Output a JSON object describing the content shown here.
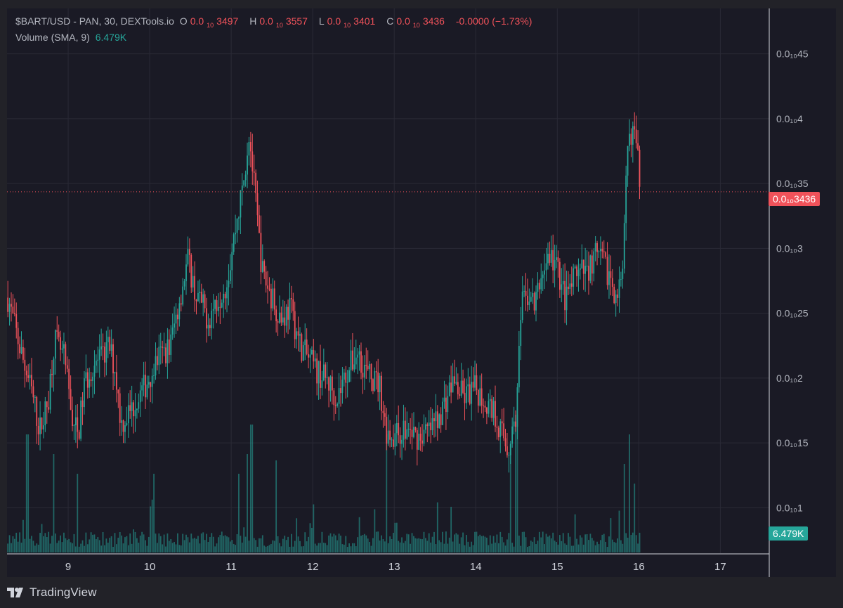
{
  "header": {
    "symbol": "$BART/USD - PAN, 30, DEXTools.io",
    "open_prefix": "O",
    "open_value": "0.0",
    "high_prefix": "H",
    "high_value": "0.0",
    "low_prefix": "L",
    "low_value": "0.0",
    "close_prefix": "C",
    "close_value": "0.0",
    "sub": "10",
    "open_digits": "3497",
    "high_digits": "3557",
    "low_digits": "3401",
    "close_digits": "3436",
    "change": "-0.0000 (−1.73%)",
    "volume_label": "Volume (SMA, 9)",
    "volume_value": "6.479K"
  },
  "price_tag": "0.0₁₀3436",
  "volume_tag": "6.479K",
  "footer": {
    "brand": "TradingView"
  },
  "colors": {
    "up": "#26a69a",
    "down": "#f0525a",
    "bg": "#1a1a25",
    "grid": "#2a2a36",
    "text": "#b2b5be"
  },
  "chart_data": {
    "type": "candlestick",
    "y_axis": {
      "ticks": [
        0.01,
        0.015,
        0.02,
        0.025,
        0.03,
        0.035,
        0.04,
        0.045
      ],
      "tick_labels": [
        "0.0₁₀1",
        "0.0₁₀15",
        "0.0₁₀2",
        "0.0₁₀25",
        "0.0₁₀3",
        "0.0₁₀35",
        "0.0₁₀4",
        "0.0₁₀45"
      ],
      "range": [
        0.0065,
        0.0485
      ],
      "unit_note": "values shown as multiples of 1e-10 scale on axis"
    },
    "x_axis": {
      "ticks": [
        "9",
        "10",
        "11",
        "12",
        "13",
        "14",
        "15",
        "16",
        "17"
      ],
      "range_days": [
        8.25,
        17.6
      ]
    },
    "last_price": 0.03436,
    "close_path": [
      [
        8.26,
        0.0262
      ],
      [
        8.4,
        0.0225
      ],
      [
        8.55,
        0.019
      ],
      [
        8.65,
        0.016
      ],
      [
        8.75,
        0.018
      ],
      [
        8.83,
        0.023
      ],
      [
        8.95,
        0.0215
      ],
      [
        9.05,
        0.017
      ],
      [
        9.12,
        0.0155
      ],
      [
        9.2,
        0.0195
      ],
      [
        9.3,
        0.021
      ],
      [
        9.42,
        0.0215
      ],
      [
        9.5,
        0.0225
      ],
      [
        9.58,
        0.0205
      ],
      [
        9.65,
        0.0165
      ],
      [
        9.8,
        0.0178
      ],
      [
        9.95,
        0.0195
      ],
      [
        10.1,
        0.0215
      ],
      [
        10.25,
        0.0225
      ],
      [
        10.38,
        0.0265
      ],
      [
        10.47,
        0.0292
      ],
      [
        10.56,
        0.0265
      ],
      [
        10.65,
        0.0255
      ],
      [
        10.72,
        0.0245
      ],
      [
        10.82,
        0.026
      ],
      [
        10.95,
        0.0275
      ],
      [
        11.05,
        0.0315
      ],
      [
        11.15,
        0.035
      ],
      [
        11.22,
        0.039
      ],
      [
        11.3,
        0.0335
      ],
      [
        11.38,
        0.0282
      ],
      [
        11.5,
        0.0262
      ],
      [
        11.62,
        0.0245
      ],
      [
        11.72,
        0.0255
      ],
      [
        11.85,
        0.0225
      ],
      [
        11.95,
        0.0215
      ],
      [
        12.05,
        0.0205
      ],
      [
        12.18,
        0.0198
      ],
      [
        12.3,
        0.0185
      ],
      [
        12.42,
        0.0205
      ],
      [
        12.55,
        0.022
      ],
      [
        12.68,
        0.0202
      ],
      [
        12.82,
        0.0195
      ],
      [
        12.9,
        0.016
      ],
      [
        13.0,
        0.0155
      ],
      [
        13.12,
        0.016
      ],
      [
        13.3,
        0.0155
      ],
      [
        13.45,
        0.016
      ],
      [
        13.6,
        0.0178
      ],
      [
        13.72,
        0.0198
      ],
      [
        13.85,
        0.0185
      ],
      [
        14.0,
        0.0192
      ],
      [
        14.12,
        0.0182
      ],
      [
        14.22,
        0.0175
      ],
      [
        14.32,
        0.0158
      ],
      [
        14.4,
        0.0145
      ],
      [
        14.5,
        0.0175
      ],
      [
        14.56,
        0.0255
      ],
      [
        14.66,
        0.0265
      ],
      [
        14.72,
        0.0255
      ],
      [
        14.82,
        0.0282
      ],
      [
        14.9,
        0.0295
      ],
      [
        15.0,
        0.0285
      ],
      [
        15.1,
        0.026
      ],
      [
        15.22,
        0.0278
      ],
      [
        15.35,
        0.0282
      ],
      [
        15.48,
        0.0295
      ],
      [
        15.6,
        0.0285
      ],
      [
        15.72,
        0.0265
      ],
      [
        15.8,
        0.0272
      ],
      [
        15.86,
        0.0375
      ],
      [
        15.92,
        0.0395
      ],
      [
        15.98,
        0.0372
      ],
      [
        16.03,
        0.0344
      ]
    ],
    "volume": {
      "label": "Volume (SMA, 9)",
      "sma": "6.479K",
      "spikes": [
        [
          8.5,
          6
        ],
        [
          8.82,
          5
        ],
        [
          9.12,
          4
        ],
        [
          10.05,
          4
        ],
        [
          11.1,
          4
        ],
        [
          11.2,
          5
        ],
        [
          11.25,
          6.5
        ],
        [
          11.55,
          3
        ],
        [
          12.9,
          6
        ],
        [
          14.42,
          5.5
        ],
        [
          14.5,
          7
        ],
        [
          15.82,
          4.5
        ],
        [
          15.88,
          6
        ],
        [
          15.95,
          3.5
        ]
      ]
    }
  }
}
